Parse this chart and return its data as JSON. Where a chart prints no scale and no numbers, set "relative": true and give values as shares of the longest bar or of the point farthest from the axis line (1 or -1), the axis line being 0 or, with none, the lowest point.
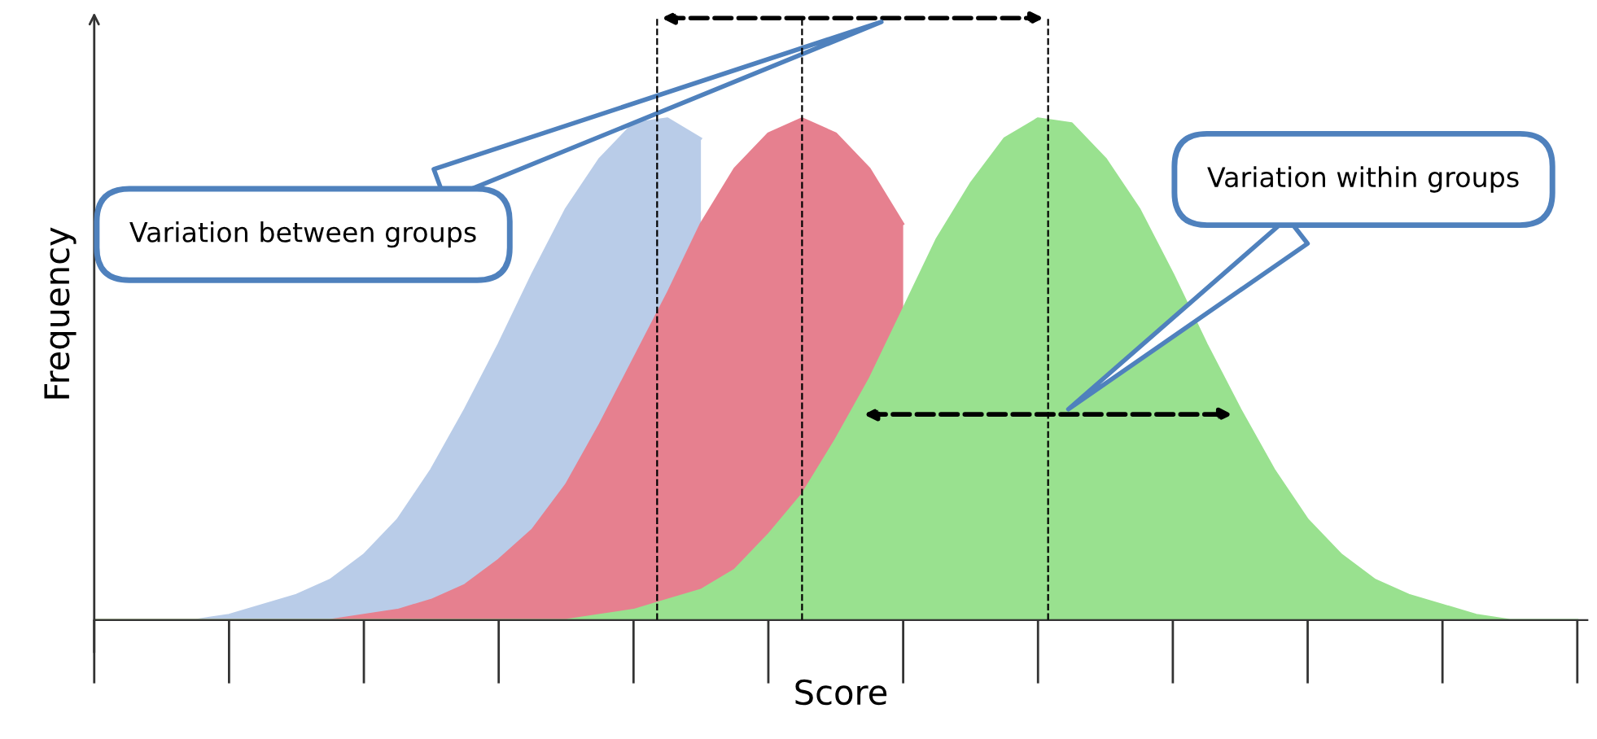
{
  "chart_data": {
    "type": "area",
    "relative": true,
    "xlabel": "Score",
    "ylabel": "Frequency",
    "categories": [
      null,
      null,
      null,
      null,
      null,
      null,
      null,
      null,
      null,
      null,
      null,
      null,
      null,
      null,
      null,
      null,
      null,
      null,
      null,
      null,
      null,
      null,
      null,
      null,
      null,
      null,
      null,
      null,
      null,
      null,
      null,
      null,
      null,
      null,
      null,
      null,
      null,
      null,
      null,
      null,
      null,
      null,
      null,
      null,
      null
    ],
    "tick_labels": false,
    "grid": false,
    "legend": false,
    "marker": "none",
    "line_style": "solid",
    "series": [
      {
        "color": "#b9cce8",
        "values": [
          0,
          0,
          0,
          0,
          0.01,
          0.03,
          0.05,
          0.08,
          0.13,
          0.2,
          0.3,
          0.42,
          0.55,
          0.69,
          0.82,
          0.92,
          0.99,
          1.0,
          0.96,
          null,
          null,
          null,
          null,
          null,
          null,
          null,
          null,
          null,
          null,
          null,
          null,
          null,
          null,
          null,
          null,
          null,
          null,
          null,
          null,
          null,
          null,
          null,
          null,
          null,
          null
        ]
      },
      {
        "color": "#e6808f",
        "values": [
          0,
          0,
          0,
          0,
          0,
          0,
          0,
          0,
          0.01,
          0.02,
          0.04,
          0.07,
          0.12,
          0.18,
          0.27,
          0.39,
          0.52,
          0.65,
          0.79,
          0.9,
          0.97,
          1.0,
          0.97,
          0.9,
          0.79,
          null,
          null,
          null,
          null,
          null,
          null,
          null,
          null,
          null,
          null,
          null,
          null,
          null,
          null,
          null,
          null,
          null,
          null,
          null,
          null
        ]
      },
      {
        "color": "#99e18f",
        "values": [
          0,
          0,
          0,
          0,
          0,
          0,
          0,
          0,
          0,
          0,
          0,
          0,
          0,
          0,
          0,
          0.01,
          0.02,
          0.04,
          0.06,
          0.1,
          0.17,
          0.25,
          0.36,
          0.48,
          0.62,
          0.76,
          0.87,
          0.96,
          1.0,
          0.99,
          0.92,
          0.82,
          0.69,
          0.55,
          0.42,
          0.3,
          0.2,
          0.13,
          0.08,
          0.05,
          0.03,
          0.01,
          0,
          0,
          0
        ]
      }
    ],
    "annotations": [
      "Variation between groups",
      "Variation within groups"
    ]
  }
}
